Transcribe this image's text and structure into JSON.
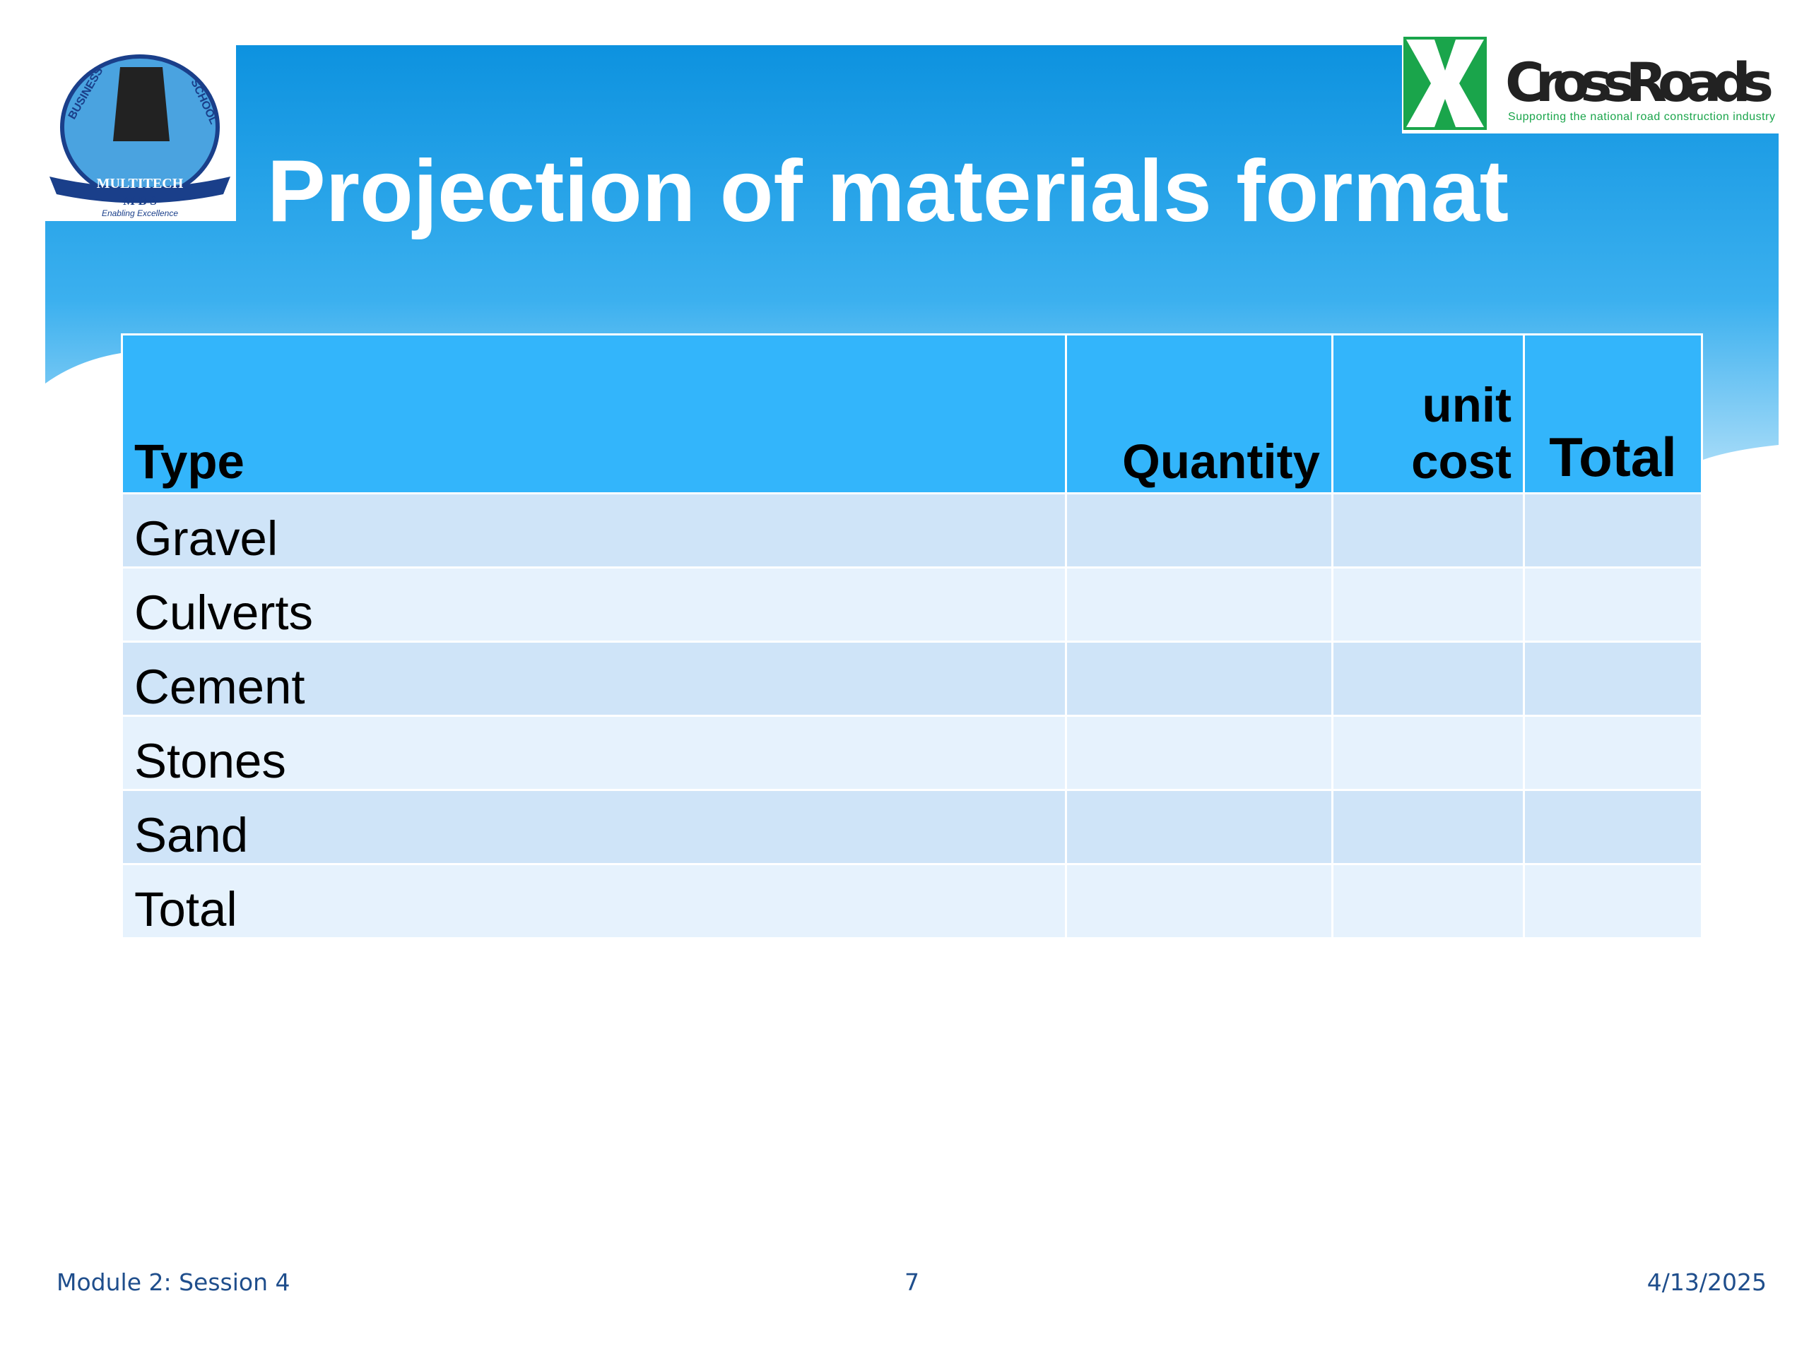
{
  "header": {
    "title": "Projection of materials format"
  },
  "logos": {
    "school": {
      "arc_left": "BUSINESS",
      "arc_right": "SCHOOL",
      "name": "MULTITECH",
      "abbr": "M B S",
      "motto": "Enabling Excellence"
    },
    "crossroads": {
      "name": "CrossRoads",
      "tagline": "Supporting the national road construction industry"
    }
  },
  "table": {
    "headers": [
      "Type",
      "Quantity",
      "unit cost",
      "Total"
    ],
    "rows": [
      [
        "Gravel"
      ],
      [
        "Culverts"
      ],
      [
        "Cement"
      ],
      [
        "Stones"
      ],
      [
        "Sand"
      ],
      [
        "Total"
      ]
    ]
  },
  "footer": {
    "left": "Module 2: Session 4",
    "center": "7",
    "right": "4/13/2025"
  }
}
